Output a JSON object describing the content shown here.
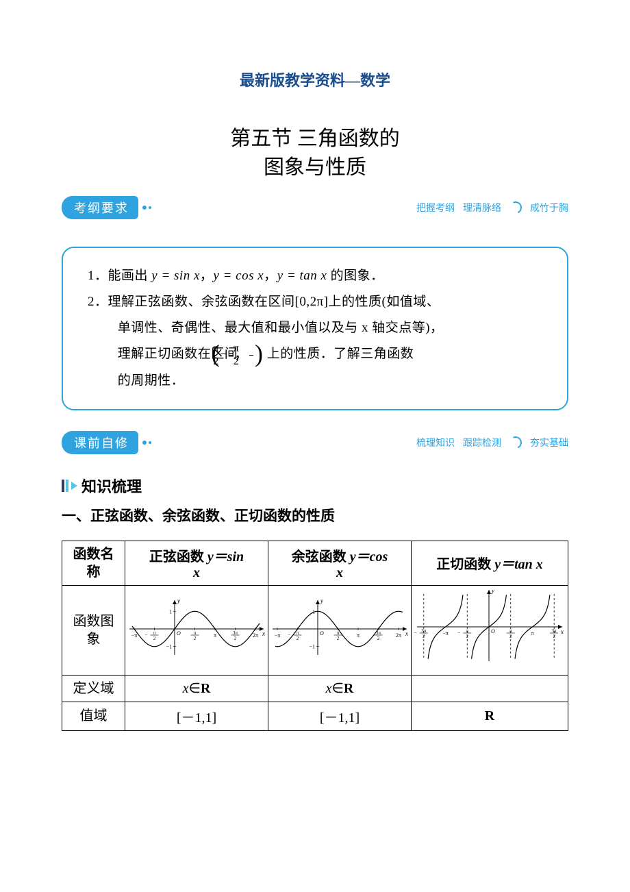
{
  "colors": {
    "brand_text": "#1a4d8f",
    "accent": "#2fa3e0",
    "accent_dark": "#2c3e66",
    "accent_light": "#57c4e5",
    "background": "#ffffff",
    "text": "#000000",
    "table_border": "#000000"
  },
  "typography": {
    "base_family": "SimSun, Songti SC, serif",
    "kai_family": "KaiTi, STKaiti, serif",
    "math_family": "Times New Roman, serif",
    "header_fontsize_pt": 16,
    "chapter_fontsize_pt": 22,
    "body_fontsize_pt": 14,
    "table_fontsize_pt": 15
  },
  "header": {
    "subtitle": "最新版教学资料—数学"
  },
  "chapter": {
    "line1": "第五节 三角函数的",
    "line2": "图象与性质"
  },
  "banner_syllabus": {
    "label": "考纲要求",
    "right_items": [
      "把握考纲",
      "理清脉络",
      "成竹于胸"
    ]
  },
  "requirements": {
    "item1_prefix": "1．能画出 ",
    "item1_f1": "y = sin x",
    "item1_sep1": "，",
    "item1_f2": "y = cos x",
    "item1_sep2": "，",
    "item1_f3": "y = tan x",
    "item1_suffix": " 的图象．",
    "item2_line1_a": "2．理解正弦函数、余弦函数在区间[0,2π]上的性质(如值域、",
    "item2_line2": "单调性、奇偶性、最大值和最小值以及与 x 轴交点等)，",
    "item2_line3_a": "理解正切函数在区间",
    "item2_line3_b": "上的性质．了解三角函数",
    "item2_line4": "的周期性．",
    "frac_num": "π",
    "frac_den": "2"
  },
  "banner_prestudy": {
    "label": "课前自修",
    "right_items": [
      "梳理知识",
      "跟踪检测",
      "夯实基础"
    ]
  },
  "section": {
    "knowledge_label": "知识梳理",
    "subheading": "一、正弦函数、余弦函数、正切函数的性质"
  },
  "table": {
    "columns": [
      {
        "label_line1": "函数名",
        "label_line2": "称"
      },
      {
        "title_prefix": "正弦函数 ",
        "title_math": "y＝sin",
        "title_math2": "x"
      },
      {
        "title_prefix": "余弦函数 ",
        "title_math": "y＝cos",
        "title_math2": "x"
      },
      {
        "title_prefix": "正切函数 ",
        "title_math": "y＝tan x"
      }
    ],
    "rows": {
      "graph_label_line1": "函数图",
      "graph_label_line2": "象",
      "domain_label": "定义域",
      "domain_sin": "x∈R",
      "domain_cos": "x∈R",
      "domain_tan": "",
      "range_label": "值域",
      "range_sin": "[－1,1]",
      "range_cos": "[－1,1]",
      "range_tan": "R"
    },
    "charts": {
      "sin": {
        "type": "line",
        "x_range": [
          -3.3,
          6.6
        ],
        "y_range": [
          -1.4,
          1.4
        ],
        "axis_color": "#000000",
        "curve_color": "#000000",
        "line_width": 1.2,
        "x_ticks": [
          {
            "pos": -3.1416,
            "label": "−π"
          },
          {
            "pos": -1.5708,
            "label": "−π/2",
            "frac": true,
            "neg": true
          },
          {
            "pos": 1.5708,
            "label": "π/2",
            "frac": true
          },
          {
            "pos": 3.1416,
            "label": "π"
          },
          {
            "pos": 4.7124,
            "label": "3π/2",
            "frac": true,
            "num": "3π"
          },
          {
            "pos": 6.2832,
            "label": "2π"
          }
        ],
        "y_ticks": [
          {
            "pos": 1,
            "label": "1"
          },
          {
            "pos": -1,
            "label": "−1"
          }
        ],
        "origin_label": "O",
        "axis_labels": {
          "x": "x",
          "y": "y"
        }
      },
      "cos": {
        "type": "line",
        "x_range": [
          -3.3,
          6.6
        ],
        "y_range": [
          -1.4,
          1.4
        ],
        "axis_color": "#000000",
        "curve_color": "#000000",
        "line_width": 1.2,
        "x_ticks": [
          {
            "pos": -3.1416,
            "label": "−π"
          },
          {
            "pos": -1.5708,
            "label": "−π/2",
            "frac": true,
            "neg": true
          },
          {
            "pos": 1.5708,
            "label": "π/2",
            "frac": true
          },
          {
            "pos": 3.1416,
            "label": "π"
          },
          {
            "pos": 4.7124,
            "label": "3π/2",
            "frac": true,
            "num": "3π"
          },
          {
            "pos": 6.2832,
            "label": "2π"
          }
        ],
        "y_ticks": [
          {
            "pos": 1,
            "label": "1"
          },
          {
            "pos": -1,
            "label": "−1"
          }
        ],
        "origin_label": "O",
        "axis_labels": {
          "x": "x",
          "y": "y"
        }
      },
      "tan": {
        "type": "line",
        "x_range": [
          -5.0,
          5.0
        ],
        "y_range": [
          -3.2,
          3.2
        ],
        "axis_color": "#000000",
        "curve_color": "#000000",
        "asymptote_dash": "3,3",
        "line_width": 1.2,
        "asymptotes": [
          -4.7124,
          -1.5708,
          1.5708,
          4.7124
        ],
        "x_ticks": [
          {
            "pos": -4.7124,
            "label": "−3π/2",
            "frac": true,
            "num": "3π",
            "neg": true
          },
          {
            "pos": -3.1416,
            "label": "−π"
          },
          {
            "pos": -1.5708,
            "label": "−π/2",
            "frac": true,
            "neg": true
          },
          {
            "pos": 1.5708,
            "label": "π/2",
            "frac": true
          },
          {
            "pos": 3.1416,
            "label": "π"
          },
          {
            "pos": 4.7124,
            "label": "3π/2",
            "frac": true,
            "num": "3π"
          }
        ],
        "origin_label": "O",
        "axis_labels": {
          "x": "x",
          "y": "y"
        }
      }
    }
  }
}
